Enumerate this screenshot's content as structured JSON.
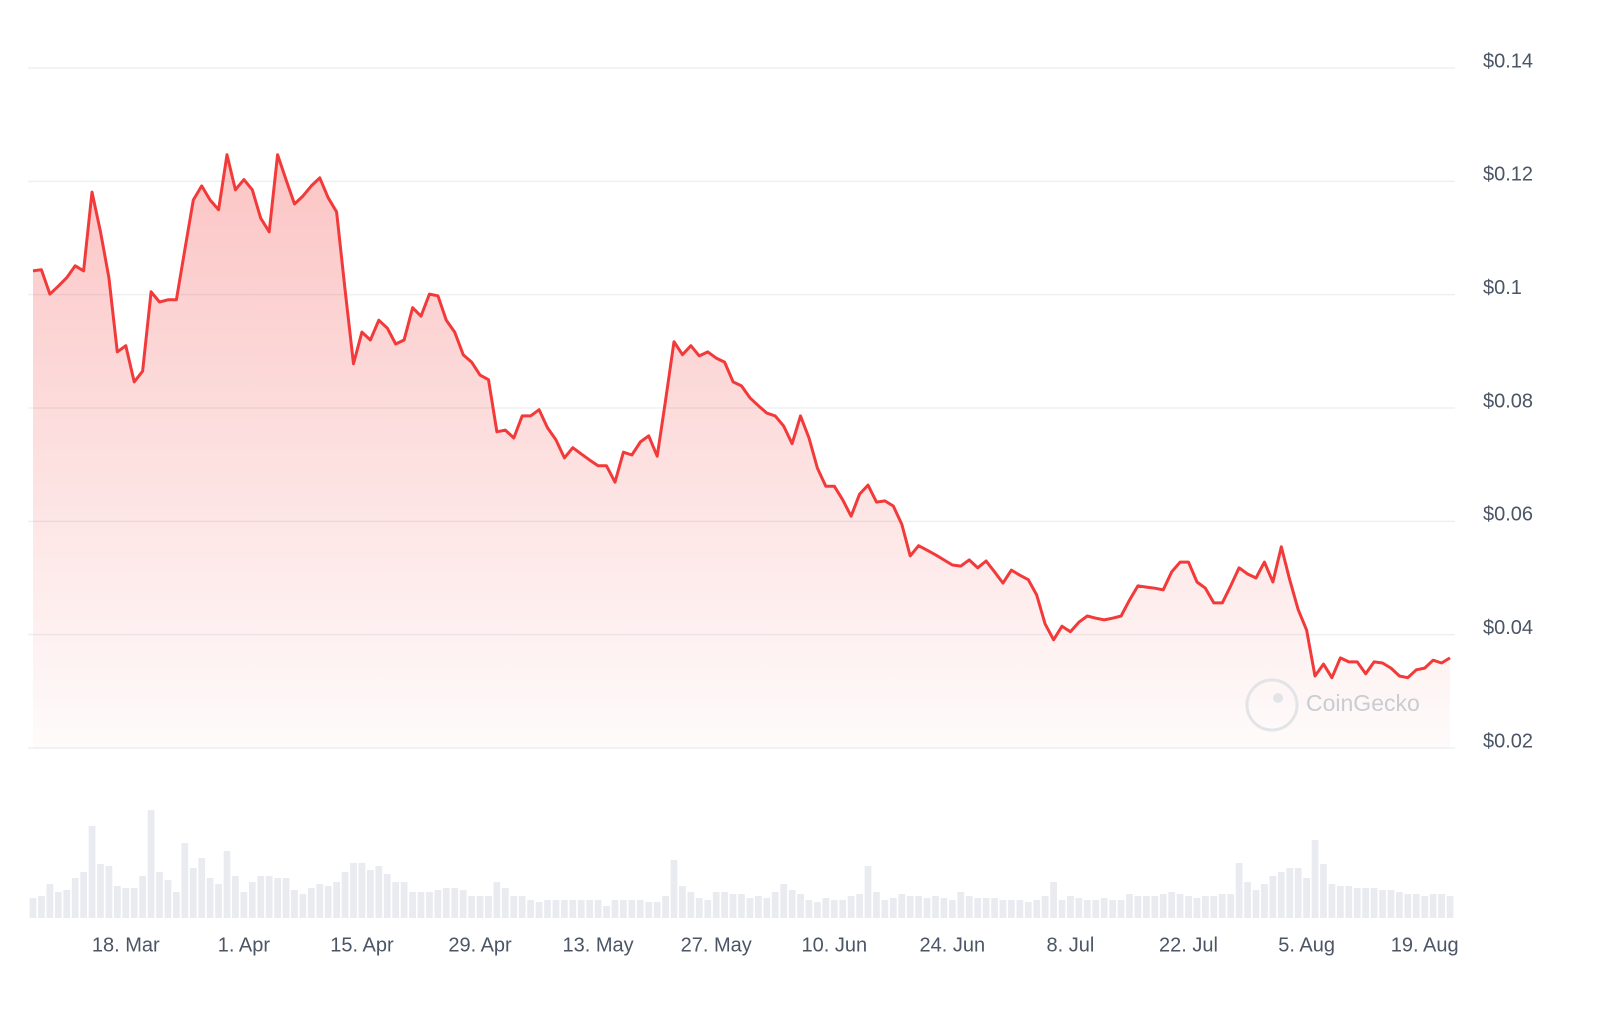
{
  "chart_data": {
    "type": "line",
    "watermark": "CoinGecko",
    "color": "#f23a3a",
    "x": [
      0,
      1,
      2,
      3,
      4,
      5,
      6,
      7,
      8,
      9,
      10,
      11,
      12,
      13,
      14,
      15,
      16,
      17,
      18,
      19,
      20,
      21,
      22,
      23,
      24,
      25,
      26,
      27,
      28,
      29,
      30,
      31,
      32,
      33,
      34,
      35,
      36,
      37,
      38,
      39,
      40,
      41,
      42,
      43,
      44,
      45,
      46,
      47,
      48,
      49,
      50,
      51,
      52,
      53,
      54,
      55,
      56,
      57,
      58,
      59,
      60,
      61,
      62,
      63,
      64,
      65,
      66,
      67,
      68,
      69,
      70,
      71,
      72,
      73,
      74,
      75,
      76,
      77,
      78,
      79,
      80,
      81,
      82,
      83,
      84,
      85,
      86,
      87,
      88,
      89,
      90,
      91,
      92,
      93,
      94,
      95,
      96,
      97,
      98,
      99,
      100,
      101,
      102,
      103,
      104,
      105,
      106,
      107,
      108,
      109,
      110,
      111,
      112,
      113,
      114,
      115,
      116,
      117,
      118,
      119,
      120,
      121,
      122,
      123,
      124,
      125,
      126,
      127,
      128,
      129,
      130,
      131,
      132,
      133,
      134,
      135,
      136,
      137,
      138,
      139,
      140,
      141,
      142,
      143,
      144,
      145,
      146,
      147,
      148,
      149,
      150,
      151,
      152,
      153,
      154,
      155,
      156,
      157,
      158,
      159,
      160,
      161,
      162,
      163,
      164,
      165,
      166,
      167,
      168
    ],
    "values": [
      0.1042,
      0.1044,
      0.1001,
      0.1015,
      0.103,
      0.1051,
      0.1042,
      0.1181,
      0.1111,
      0.103,
      0.0899,
      0.091,
      0.0846,
      0.0865,
      0.1005,
      0.0987,
      0.0991,
      0.0991,
      0.1079,
      0.1167,
      0.1192,
      0.1167,
      0.115,
      0.1247,
      0.1185,
      0.1203,
      0.1185,
      0.1135,
      0.1111,
      0.1247,
      0.1203,
      0.116,
      0.1174,
      0.1192,
      0.1206,
      0.1171,
      0.1146,
      0.1008,
      0.0878,
      0.0934,
      0.092,
      0.0955,
      0.0941,
      0.0913,
      0.092,
      0.0977,
      0.0962,
      0.1001,
      0.0998,
      0.0955,
      0.0934,
      0.0894,
      0.0881,
      0.0858,
      0.085,
      0.0758,
      0.0761,
      0.0747,
      0.0786,
      0.0786,
      0.0797,
      0.0765,
      0.0744,
      0.0712,
      0.073,
      0.0719,
      0.0708,
      0.0698,
      0.0698,
      0.0669,
      0.0722,
      0.0717,
      0.074,
      0.0751,
      0.0715,
      0.0814,
      0.0917,
      0.0894,
      0.091,
      0.0892,
      0.0899,
      0.0888,
      0.0881,
      0.0846,
      0.0839,
      0.0818,
      0.0804,
      0.0791,
      0.0786,
      0.0768,
      0.0737,
      0.0786,
      0.0747,
      0.0694,
      0.0662,
      0.0662,
      0.0638,
      0.0609,
      0.0648,
      0.0664,
      0.0634,
      0.0636,
      0.0627,
      0.0595,
      0.0539,
      0.0557,
      0.0549,
      0.0541,
      0.0532,
      0.0523,
      0.0521,
      0.0532,
      0.0518,
      0.053,
      0.0511,
      0.0491,
      0.0514,
      0.0505,
      0.0497,
      0.047,
      0.0419,
      0.0391,
      0.0415,
      0.0405,
      0.0422,
      0.0433,
      0.0429,
      0.0426,
      0.0429,
      0.0433,
      0.0461,
      0.0486,
      0.0484,
      0.0482,
      0.0479,
      0.0511,
      0.0528,
      0.0528,
      0.0493,
      0.0482,
      0.0456,
      0.0456,
      0.0486,
      0.0518,
      0.0507,
      0.05,
      0.0528,
      0.0493,
      0.0555,
      0.0497,
      0.0444,
      0.0408,
      0.0327,
      0.0348,
      0.0324,
      0.0359,
      0.0352,
      0.0352,
      0.0331,
      0.0352,
      0.035,
      0.0341,
      0.0327,
      0.0324,
      0.0338,
      0.0341,
      0.0355,
      0.035,
      0.0359
    ],
    "volume": {
      "color": "#e9ebf0",
      "values": [
        20,
        22,
        34,
        26,
        28,
        40,
        46,
        92,
        54,
        52,
        32,
        30,
        30,
        42,
        108,
        46,
        38,
        26,
        75,
        50,
        60,
        40,
        34,
        67,
        42,
        26,
        36,
        42,
        42,
        40,
        40,
        28,
        24,
        30,
        34,
        32,
        36,
        46,
        55,
        55,
        48,
        52,
        44,
        36,
        36,
        26,
        26,
        26,
        28,
        30,
        30,
        28,
        22,
        22,
        22,
        36,
        30,
        22,
        22,
        18,
        16,
        18,
        18,
        18,
        18,
        18,
        18,
        18,
        12,
        18,
        18,
        18,
        18,
        16,
        16,
        22,
        58,
        32,
        26,
        20,
        18,
        26,
        26,
        24,
        24,
        20,
        22,
        20,
        26,
        34,
        28,
        24,
        18,
        16,
        20,
        18,
        18,
        22,
        24,
        52,
        26,
        18,
        20,
        24,
        22,
        22,
        20,
        22,
        20,
        18,
        26,
        22,
        20,
        20,
        20,
        18,
        18,
        18,
        16,
        18,
        22,
        36,
        18,
        22,
        20,
        18,
        18,
        20,
        18,
        18,
        24,
        22,
        22,
        22,
        24,
        26,
        24,
        22,
        20,
        22,
        22,
        24,
        24,
        55,
        36,
        28,
        34,
        42,
        46,
        50,
        50,
        40,
        78,
        54,
        34,
        32,
        32,
        30,
        30,
        30,
        28,
        28,
        26,
        24,
        24,
        22,
        24,
        24,
        22
      ]
    },
    "xlim": [
      0,
      168
    ],
    "xticks": [
      {
        "value": 11,
        "label": "18. Mar"
      },
      {
        "value": 25,
        "label": "1. Apr"
      },
      {
        "value": 39,
        "label": "15. Apr"
      },
      {
        "value": 53,
        "label": "29. Apr"
      },
      {
        "value": 67,
        "label": "13. May"
      },
      {
        "value": 81,
        "label": "27. May"
      },
      {
        "value": 95,
        "label": "10. Jun"
      },
      {
        "value": 109,
        "label": "24. Jun"
      },
      {
        "value": 123,
        "label": "8. Jul"
      },
      {
        "value": 137,
        "label": "22. Jul"
      },
      {
        "value": 151,
        "label": "5. Aug"
      },
      {
        "value": 165,
        "label": "19. Aug"
      }
    ],
    "ylim": [
      0.02,
      0.14
    ],
    "yticks": [
      {
        "value": 0.14,
        "label": "$0.14"
      },
      {
        "value": 0.12,
        "label": "$0.12"
      },
      {
        "value": 0.1,
        "label": "$0.1"
      },
      {
        "value": 0.08,
        "label": "$0.08"
      },
      {
        "value": 0.06,
        "label": "$0.06"
      },
      {
        "value": 0.04,
        "label": "$0.04"
      },
      {
        "value": 0.02,
        "label": "$0.02"
      }
    ],
    "grid": true
  }
}
